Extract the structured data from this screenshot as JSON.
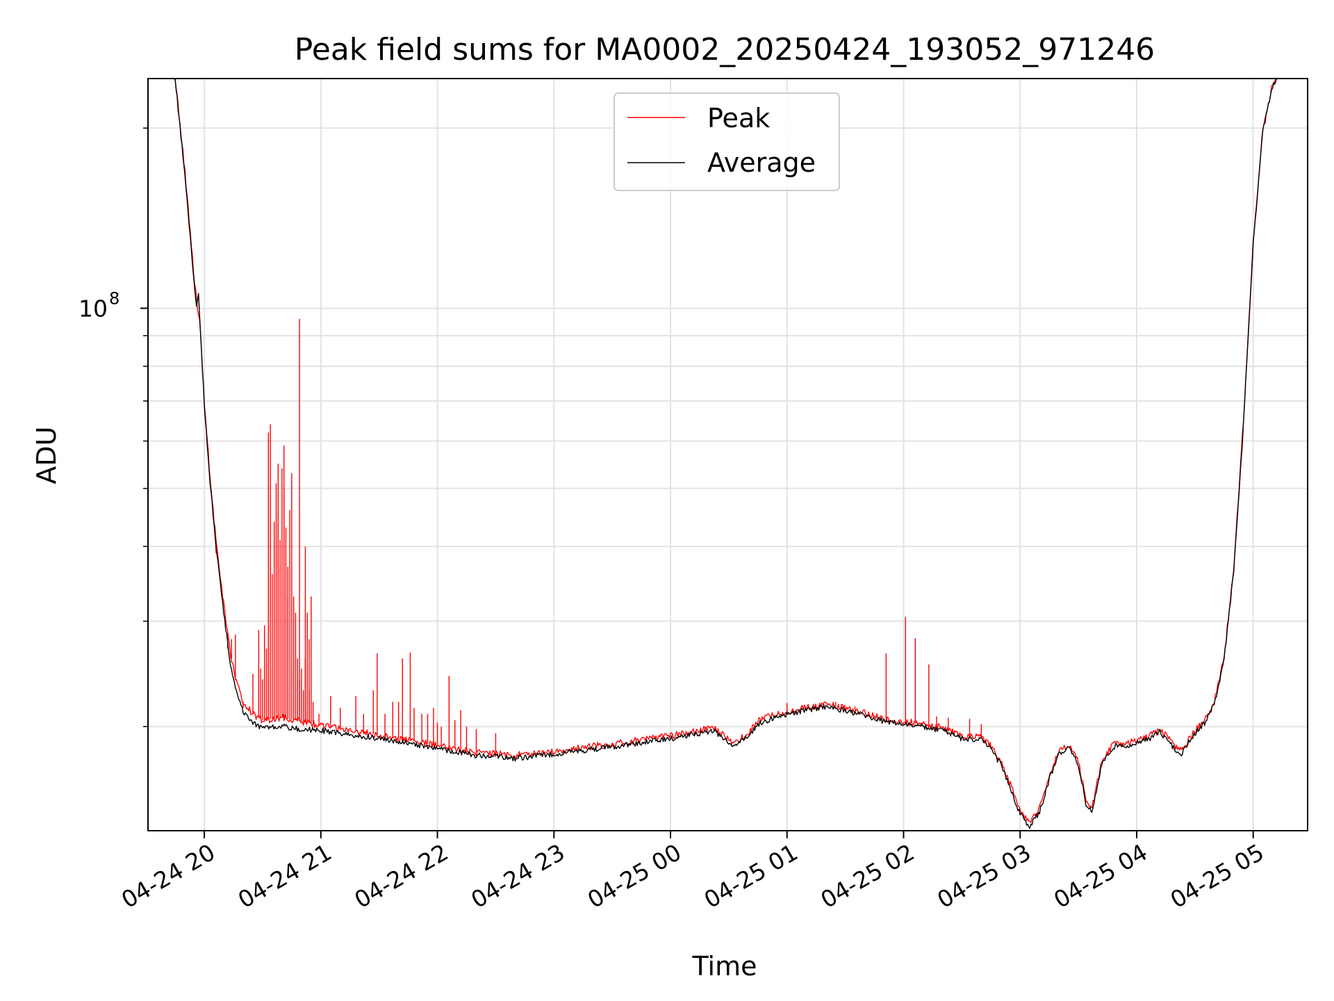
{
  "chart_data": {
    "type": "line",
    "title": "Peak field sums for MA0002_20250424_193052_971246",
    "xlabel": "Time",
    "ylabel": "ADU",
    "x_scale": "time",
    "y_scale": "log",
    "xlim": [
      "2025-04-24 19:31",
      "2025-04-25 05:28"
    ],
    "ylim": [
      13400000,
      242000000
    ],
    "grid": true,
    "legend_position": "top-center",
    "x_ticks": [
      {
        "t": "2025-04-24 20:00",
        "label": "04-24 20"
      },
      {
        "t": "2025-04-24 21:00",
        "label": "04-24 21"
      },
      {
        "t": "2025-04-24 22:00",
        "label": "04-24 22"
      },
      {
        "t": "2025-04-24 23:00",
        "label": "04-24 23"
      },
      {
        "t": "2025-04-25 00:00",
        "label": "04-25 00"
      },
      {
        "t": "2025-04-25 01:00",
        "label": "04-25 01"
      },
      {
        "t": "2025-04-25 02:00",
        "label": "04-25 02"
      },
      {
        "t": "2025-04-25 03:00",
        "label": "04-25 03"
      },
      {
        "t": "2025-04-25 04:00",
        "label": "04-25 04"
      },
      {
        "t": "2025-04-25 05:00",
        "label": "04-25 05"
      }
    ],
    "y_major_ticks": [
      {
        "value": 100000000,
        "label_base": "10",
        "label_exp": "8"
      }
    ],
    "y_minor_ticks": [
      20000000,
      30000000,
      40000000,
      50000000,
      60000000,
      70000000,
      80000000,
      90000000,
      200000000
    ],
    "series": [
      {
        "name": "Peak",
        "color": "#ff0000",
        "points": [
          [
            "2025-04-24 19:31",
            242000000
          ],
          [
            "2025-04-24 19:45",
            242000000
          ],
          [
            "2025-04-24 19:47",
            210000000
          ],
          [
            "2025-04-24 19:50",
            170000000
          ],
          [
            "2025-04-24 19:55",
            110000000
          ],
          [
            "2025-04-24 19:58",
            92000000
          ],
          [
            "2025-04-24 20:00",
            70000000
          ],
          [
            "2025-04-24 20:03",
            52000000
          ],
          [
            "2025-04-24 20:06",
            41000000
          ],
          [
            "2025-04-24 20:10",
            32000000
          ],
          [
            "2025-04-24 20:13",
            27000000
          ],
          [
            "2025-04-24 20:16",
            24000000
          ],
          [
            "2025-04-24 20:20",
            22000000
          ],
          [
            "2025-04-24 20:25",
            21000000
          ],
          [
            "2025-04-24 20:30",
            20500000
          ],
          [
            "2025-04-24 20:40",
            20700000
          ],
          [
            "2025-04-24 20:50",
            20400000
          ],
          [
            "2025-04-24 21:00",
            20100000
          ],
          [
            "2025-04-24 21:20",
            19600000
          ],
          [
            "2025-04-24 21:40",
            19100000
          ],
          [
            "2025-04-24 22:00",
            18600000
          ],
          [
            "2025-04-24 22:20",
            18100000
          ],
          [
            "2025-04-24 22:40",
            17900000
          ],
          [
            "2025-04-24 23:00",
            18200000
          ],
          [
            "2025-04-24 23:30",
            18700000
          ],
          [
            "2025-04-25 00:00",
            19300000
          ],
          [
            "2025-04-25 00:15",
            19700000
          ],
          [
            "2025-04-25 00:22",
            19900000
          ],
          [
            "2025-04-25 00:25",
            19600000
          ],
          [
            "2025-04-25 00:32",
            18800000
          ],
          [
            "2025-04-25 00:40",
            19400000
          ],
          [
            "2025-04-25 00:45",
            20500000
          ],
          [
            "2025-04-25 00:55",
            21000000
          ],
          [
            "2025-04-25 01:10",
            21500000
          ],
          [
            "2025-04-25 01:20",
            21800000
          ],
          [
            "2025-04-25 01:35",
            21300000
          ],
          [
            "2025-04-25 01:50",
            20600000
          ],
          [
            "2025-04-25 02:05",
            20300000
          ],
          [
            "2025-04-25 02:20",
            19900000
          ],
          [
            "2025-04-25 02:30",
            19300000
          ],
          [
            "2025-04-25 02:40",
            19200000
          ],
          [
            "2025-04-25 02:44",
            18700000
          ],
          [
            "2025-04-25 02:50",
            17500000
          ],
          [
            "2025-04-25 02:55",
            16000000
          ],
          [
            "2025-04-25 03:00",
            14500000
          ],
          [
            "2025-04-25 03:05",
            13800000
          ],
          [
            "2025-04-25 03:10",
            14600000
          ],
          [
            "2025-04-25 03:15",
            16500000
          ],
          [
            "2025-04-25 03:20",
            18300000
          ],
          [
            "2025-04-25 03:25",
            18600000
          ],
          [
            "2025-04-25 03:30",
            17500000
          ],
          [
            "2025-04-25 03:34",
            15000000
          ],
          [
            "2025-04-25 03:37",
            14600000
          ],
          [
            "2025-04-25 03:42",
            17500000
          ],
          [
            "2025-04-25 03:48",
            18700000
          ],
          [
            "2025-04-25 04:00",
            18900000
          ],
          [
            "2025-04-25 04:08",
            19400000
          ],
          [
            "2025-04-25 04:12",
            19800000
          ],
          [
            "2025-04-25 04:20",
            18500000
          ],
          [
            "2025-04-25 04:23",
            18200000
          ],
          [
            "2025-04-25 04:30",
            19700000
          ],
          [
            "2025-04-25 04:35",
            20500000
          ],
          [
            "2025-04-25 04:40",
            22000000
          ],
          [
            "2025-04-25 04:45",
            26000000
          ],
          [
            "2025-04-25 04:50",
            37000000
          ],
          [
            "2025-04-25 04:55",
            65000000
          ],
          [
            "2025-04-25 05:00",
            130000000
          ],
          [
            "2025-04-25 05:05",
            200000000
          ],
          [
            "2025-04-25 05:10",
            237000000
          ],
          [
            "2025-04-25 05:12",
            242000000
          ],
          [
            "2025-04-25 05:28",
            242000000
          ]
        ],
        "spikes": [
          [
            "2025-04-24 20:06",
            39000000
          ],
          [
            "2025-04-24 20:08",
            36000000
          ],
          [
            "2025-04-24 20:12",
            27000000
          ],
          [
            "2025-04-24 20:14",
            28000000
          ],
          [
            "2025-04-24 20:16",
            28500000
          ],
          [
            "2025-04-24 20:20",
            21500000
          ],
          [
            "2025-04-24 20:25",
            24500000
          ],
          [
            "2025-04-24 20:28",
            29000000
          ],
          [
            "2025-04-24 20:29",
            25000000
          ],
          [
            "2025-04-24 20:30",
            24000000
          ],
          [
            "2025-04-24 20:31",
            29500000
          ],
          [
            "2025-04-24 20:32",
            27000000
          ],
          [
            "2025-04-24 20:33",
            62000000
          ],
          [
            "2025-04-24 20:34",
            64000000
          ],
          [
            "2025-04-24 20:35",
            36000000
          ],
          [
            "2025-04-24 20:36",
            44000000
          ],
          [
            "2025-04-24 20:37",
            51000000
          ],
          [
            "2025-04-24 20:38",
            55000000
          ],
          [
            "2025-04-24 20:38",
            46000000
          ],
          [
            "2025-04-24 20:39",
            41000000
          ],
          [
            "2025-04-24 20:40",
            54000000
          ],
          [
            "2025-04-24 20:41",
            59000000
          ],
          [
            "2025-04-24 20:41",
            50000000
          ],
          [
            "2025-04-24 20:42",
            43000000
          ],
          [
            "2025-04-24 20:43",
            37000000
          ],
          [
            "2025-04-24 20:43",
            33000000
          ],
          [
            "2025-04-24 20:44",
            46000000
          ],
          [
            "2025-04-24 20:45",
            53000000
          ],
          [
            "2025-04-24 20:46",
            33000000
          ],
          [
            "2025-04-24 20:47",
            31000000
          ],
          [
            "2025-04-24 20:48",
            26000000
          ],
          [
            "2025-04-24 20:49",
            24000000
          ],
          [
            "2025-04-24 20:50",
            25000000
          ],
          [
            "2025-04-24 20:51",
            23000000
          ],
          [
            "2025-04-24 20:52",
            26000000
          ],
          [
            "2025-04-24 20:53",
            31000000
          ],
          [
            "2025-04-24 20:54",
            23000000
          ],
          [
            "2025-04-24 20:55",
            33000000
          ],
          [
            "2025-04-24 20:56",
            22000000
          ],
          [
            "2025-04-24 20:59",
            21000000
          ],
          [
            "2025-04-24 20:49",
            96000000
          ],
          [
            "2025-04-24 20:52",
            40000000
          ],
          [
            "2025-04-24 20:54",
            28000000
          ],
          [
            "2025-04-24 21:05",
            22500000
          ],
          [
            "2025-04-24 21:10",
            21500000
          ],
          [
            "2025-04-24 21:18",
            22500000
          ],
          [
            "2025-04-24 21:22",
            21000000
          ],
          [
            "2025-04-24 21:27",
            23000000
          ],
          [
            "2025-04-24 21:29",
            26500000
          ],
          [
            "2025-04-24 21:33",
            21000000
          ],
          [
            "2025-04-24 21:37",
            22000000
          ],
          [
            "2025-04-24 21:40",
            22000000
          ],
          [
            "2025-04-24 21:42",
            26000000
          ],
          [
            "2025-04-24 21:46",
            26600000
          ],
          [
            "2025-04-24 21:48",
            21500000
          ],
          [
            "2025-04-24 21:52",
            21000000
          ],
          [
            "2025-04-24 21:55",
            21000000
          ],
          [
            "2025-04-24 21:58",
            21500000
          ],
          [
            "2025-04-24 22:00",
            20300000
          ],
          [
            "2025-04-24 22:02",
            20000000
          ],
          [
            "2025-04-24 22:06",
            24300000
          ],
          [
            "2025-04-24 22:09",
            20500000
          ],
          [
            "2025-04-24 22:12",
            21300000
          ],
          [
            "2025-04-24 22:15",
            20000000
          ],
          [
            "2025-04-24 22:20",
            19800000
          ],
          [
            "2025-04-24 22:30",
            19500000
          ],
          [
            "2025-04-25 00:47",
            20800000
          ],
          [
            "2025-04-25 01:00",
            21900000
          ],
          [
            "2025-04-25 01:25",
            22000000
          ],
          [
            "2025-04-25 01:35",
            21600000
          ],
          [
            "2025-04-25 01:51",
            26500000
          ],
          [
            "2025-04-25 02:01",
            30500000
          ],
          [
            "2025-04-25 02:06",
            28100000
          ],
          [
            "2025-04-25 02:13",
            25400000
          ],
          [
            "2025-04-25 02:17",
            20800000
          ],
          [
            "2025-04-25 02:23",
            20700000
          ],
          [
            "2025-04-25 02:34",
            20600000
          ],
          [
            "2025-04-25 02:40",
            20200000
          ]
        ]
      },
      {
        "name": "Average",
        "color": "#000000",
        "points": [
          [
            "2025-04-24 19:31",
            242000000
          ],
          [
            "2025-04-24 19:45",
            242000000
          ],
          [
            "2025-04-24 19:47",
            208000000
          ],
          [
            "2025-04-24 19:50",
            168000000
          ],
          [
            "2025-04-24 19:55",
            108000000
          ],
          [
            "2025-04-24 19:56",
            101000000
          ],
          [
            "2025-04-24 19:57",
            106000000
          ],
          [
            "2025-04-24 19:58",
            91000000
          ],
          [
            "2025-04-24 20:00",
            69000000
          ],
          [
            "2025-04-24 20:03",
            51000000
          ],
          [
            "2025-04-24 20:06",
            40000000
          ],
          [
            "2025-04-24 20:10",
            31000000
          ],
          [
            "2025-04-24 20:13",
            26000000
          ],
          [
            "2025-04-24 20:16",
            23000000
          ],
          [
            "2025-04-24 20:20",
            21200000
          ],
          [
            "2025-04-24 20:25",
            20300000
          ],
          [
            "2025-04-24 20:30",
            19900000
          ],
          [
            "2025-04-24 20:40",
            20000000
          ],
          [
            "2025-04-24 20:50",
            19800000
          ],
          [
            "2025-04-24 21:00",
            19700000
          ],
          [
            "2025-04-24 21:20",
            19300000
          ],
          [
            "2025-04-24 21:40",
            18900000
          ],
          [
            "2025-04-24 22:00",
            18400000
          ],
          [
            "2025-04-24 22:20",
            17900000
          ],
          [
            "2025-04-24 22:40",
            17700000
          ],
          [
            "2025-04-24 23:00",
            18000000
          ],
          [
            "2025-04-24 23:30",
            18500000
          ],
          [
            "2025-04-25 00:00",
            19100000
          ],
          [
            "2025-04-25 00:15",
            19500000
          ],
          [
            "2025-04-25 00:22",
            19700000
          ],
          [
            "2025-04-25 00:25",
            19400000
          ],
          [
            "2025-04-25 00:32",
            18600000
          ],
          [
            "2025-04-25 00:40",
            19200000
          ],
          [
            "2025-04-25 00:45",
            20200000
          ],
          [
            "2025-04-25 00:55",
            20800000
          ],
          [
            "2025-04-25 01:10",
            21300000
          ],
          [
            "2025-04-25 01:20",
            21600000
          ],
          [
            "2025-04-25 01:35",
            21100000
          ],
          [
            "2025-04-25 01:50",
            20400000
          ],
          [
            "2025-04-25 02:05",
            20100000
          ],
          [
            "2025-04-25 02:20",
            19700000
          ],
          [
            "2025-04-25 02:30",
            19100000
          ],
          [
            "2025-04-25 02:40",
            19000000
          ],
          [
            "2025-04-25 02:44",
            18500000
          ],
          [
            "2025-04-25 02:50",
            17300000
          ],
          [
            "2025-04-25 02:55",
            15800000
          ],
          [
            "2025-04-25 03:00",
            14300000
          ],
          [
            "2025-04-25 03:05",
            13600000
          ],
          [
            "2025-04-25 03:10",
            14400000
          ],
          [
            "2025-04-25 03:15",
            16300000
          ],
          [
            "2025-04-25 03:20",
            18100000
          ],
          [
            "2025-04-25 03:25",
            18400000
          ],
          [
            "2025-04-25 03:30",
            17300000
          ],
          [
            "2025-04-25 03:34",
            14800000
          ],
          [
            "2025-04-25 03:37",
            14400000
          ],
          [
            "2025-04-25 03:42",
            17300000
          ],
          [
            "2025-04-25 03:48",
            18500000
          ],
          [
            "2025-04-25 04:00",
            18700000
          ],
          [
            "2025-04-25 04:08",
            19200000
          ],
          [
            "2025-04-25 04:12",
            19600000
          ],
          [
            "2025-04-25 04:20",
            18300000
          ],
          [
            "2025-04-25 04:23",
            18000000
          ],
          [
            "2025-04-25 04:30",
            19500000
          ],
          [
            "2025-04-25 04:35",
            20300000
          ],
          [
            "2025-04-25 04:40",
            21800000
          ],
          [
            "2025-04-25 04:45",
            25800000
          ],
          [
            "2025-04-25 04:50",
            36500000
          ],
          [
            "2025-04-25 04:55",
            64000000
          ],
          [
            "2025-04-25 05:00",
            128000000
          ],
          [
            "2025-04-25 05:05",
            198000000
          ],
          [
            "2025-04-25 05:10",
            236000000
          ],
          [
            "2025-04-25 05:12",
            242000000
          ],
          [
            "2025-04-25 05:28",
            242000000
          ]
        ]
      }
    ]
  }
}
